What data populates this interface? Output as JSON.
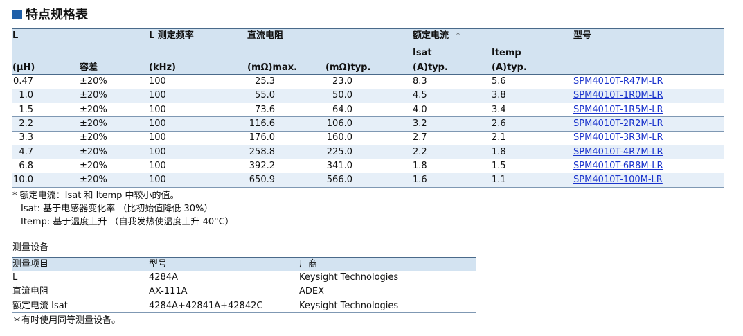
{
  "header": {
    "title": "特点规格表"
  },
  "spec_table": {
    "header": {
      "l": "L",
      "l_unit": "(μH)",
      "tolerance": "容差",
      "freq": "L 测定频率",
      "freq_unit": "(kHz)",
      "dcr": "直流电阻",
      "dcr_max": "(mΩ)max.",
      "dcr_typ": "(mΩ)typ.",
      "rated_current": "额定电流",
      "rated_current_mark": "*",
      "isat": "Isat",
      "isat_unit": "(A)typ.",
      "itemp": "Itemp",
      "itemp_unit": "(A)typ.",
      "model": "型号"
    },
    "rows": [
      [
        "0.47",
        "±20%",
        "100",
        "25.3",
        "23.0",
        "8.3",
        "5.6",
        "SPM4010T-R47M-LR"
      ],
      [
        "1.0",
        "±20%",
        "100",
        "55.0",
        "50.0",
        "4.5",
        "3.8",
        "SPM4010T-1R0M-LR"
      ],
      [
        "1.5",
        "±20%",
        "100",
        "73.6",
        "64.0",
        "4.0",
        "3.4",
        "SPM4010T-1R5M-LR"
      ],
      [
        "2.2",
        "±20%",
        "100",
        "116.6",
        "106.0",
        "3.2",
        "2.6",
        "SPM4010T-2R2M-LR"
      ],
      [
        "3.3",
        "±20%",
        "100",
        "176.0",
        "160.0",
        "2.7",
        "2.1",
        "SPM4010T-3R3M-LR"
      ],
      [
        "4.7",
        "±20%",
        "100",
        "258.8",
        "225.0",
        "2.2",
        "1.8",
        "SPM4010T-4R7M-LR"
      ],
      [
        "6.8",
        "±20%",
        "100",
        "392.2",
        "341.0",
        "1.8",
        "1.5",
        "SPM4010T-6R8M-LR"
      ],
      [
        "10.0",
        "±20%",
        "100",
        "650.9",
        "566.0",
        "1.6",
        "1.1",
        "SPM4010T-100M-LR"
      ]
    ]
  },
  "notes": [
    "* 额定电流：Isat 和 Itemp 中较小的值。",
    "Isat: 基于电感器变化率 （比初始值降低 30%）",
    "Itemp: 基于温度上升 （自我发热使温度上升 40°C）"
  ],
  "equipment": {
    "title": "测量设备",
    "columns": [
      "测量项目",
      "型号",
      "厂商"
    ],
    "rows": [
      [
        "L",
        "4284A",
        "Keysight Technologies"
      ],
      [
        "直流电阻",
        "AX-111A",
        "ADEX"
      ],
      [
        "额定电流 Isat",
        "4284A+42841A+42842C",
        "Keysight Technologies"
      ]
    ],
    "footnote": "＊有时使用同等测量设备。"
  }
}
